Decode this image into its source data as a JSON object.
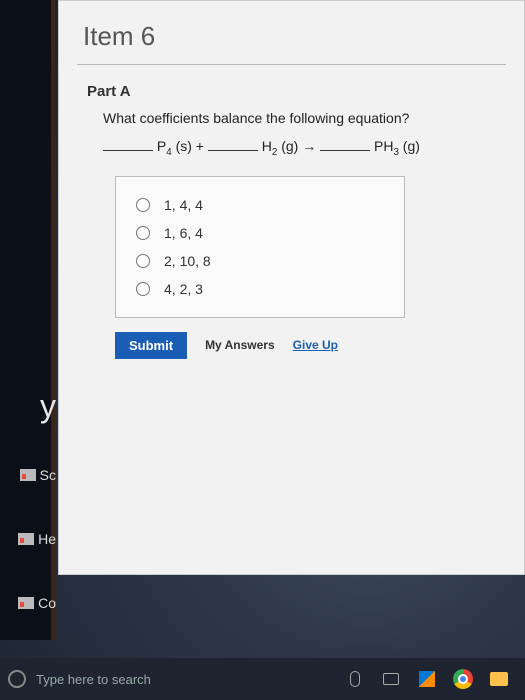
{
  "item": {
    "title": "Item 6"
  },
  "partA": {
    "label": "Part A",
    "question": "What coefficients balance the following equation?",
    "equation": {
      "p4": "P",
      "p4_sub": "4",
      "p4_state": " (s) + ",
      "h2": "H",
      "h2_sub": "2",
      "h2_state": " (g) → ",
      "ph3_p": "PH",
      "ph3_sub": "3",
      "ph3_state": " (g)"
    },
    "options": [
      "1, 4, 4",
      "1, 6, 4",
      "2, 10, 8",
      "4, 2, 3"
    ],
    "submit_label": "Submit",
    "my_answers_label": "My Answers",
    "give_up_label": "Give Up"
  },
  "sidebar": {
    "big": "y",
    "items": [
      "Sc",
      "He",
      "Co"
    ]
  },
  "taskbar": {
    "search_placeholder": "Type here to search"
  },
  "colors": {
    "submit_bg": "#1a5db4",
    "link": "#1a5db4",
    "window_bg": "#f2f2f2"
  }
}
